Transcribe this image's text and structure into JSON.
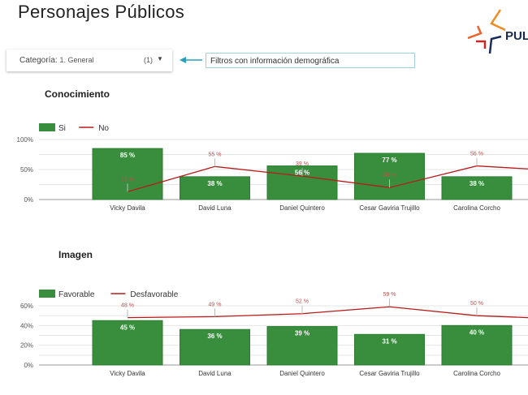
{
  "header": {
    "title": "Personajes Públicos",
    "logo_text": "PULS"
  },
  "filter": {
    "label": "Categoría:",
    "value": "1. General",
    "count": "(1)",
    "note": "Filtros con información demográfica"
  },
  "colors": {
    "bar": "#388e3c",
    "line": "#b71c1c",
    "label_line": "#c0504d"
  },
  "chart_data": [
    {
      "type": "bar",
      "title": "Conocimiento",
      "categories": [
        "Vicky Davila",
        "David Luna",
        "Daniel Quintero",
        "Cesar Gaviria Trujillo",
        "Carolina Corcho"
      ],
      "series": [
        {
          "name": "Si",
          "kind": "bar",
          "values": [
            85,
            38,
            56,
            77,
            38
          ]
        },
        {
          "name": "No",
          "kind": "line",
          "values": [
            13,
            55,
            39,
            20,
            56
          ],
          "trailing": 51
        }
      ],
      "yticks": [
        "0%",
        "50%",
        "100%"
      ],
      "ylim": [
        0,
        100
      ],
      "legend": "top-left"
    },
    {
      "type": "bar",
      "title": "Imagen",
      "categories": [
        "Vicky Davila",
        "David Luna",
        "Daniel Quintero",
        "Cesar Gaviria Trujillo",
        "Carolina Corcho"
      ],
      "series": [
        {
          "name": "Favorable",
          "kind": "bar",
          "values": [
            45,
            36,
            39,
            31,
            40
          ]
        },
        {
          "name": "Desfavorable",
          "kind": "line",
          "values": [
            48,
            49,
            52,
            59,
            50
          ],
          "trailing": 48
        }
      ],
      "yticks": [
        "0%",
        "20%",
        "40%",
        "60%"
      ],
      "ylim": [
        0,
        60
      ],
      "legend": "top-left"
    }
  ]
}
